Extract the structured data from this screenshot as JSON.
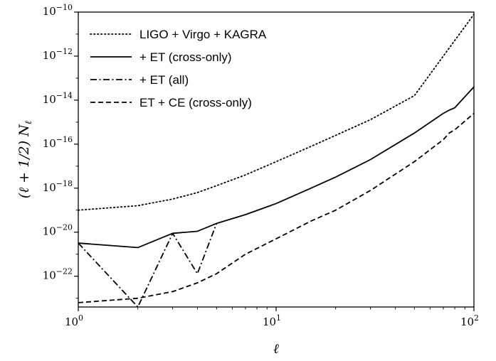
{
  "chart_data": {
    "type": "line",
    "xlabel": "ℓ",
    "ylabel": "(ℓ + 1/2) N",
    "ylabel_sub": "ℓ",
    "xscale": "log",
    "yscale": "log",
    "xlim": [
      1,
      100
    ],
    "ylim": [
      4e-24,
      1e-10
    ],
    "x_ticks": [
      {
        "value": 1,
        "base": "10",
        "exp": "0"
      },
      {
        "value": 10,
        "base": "10",
        "exp": "1"
      },
      {
        "value": 100,
        "base": "10",
        "exp": "2"
      }
    ],
    "y_ticks": [
      {
        "value": 1e-22,
        "base": "10",
        "exp": "−22"
      },
      {
        "value": 1e-20,
        "base": "10",
        "exp": "−20"
      },
      {
        "value": 1e-18,
        "base": "10",
        "exp": "−18"
      },
      {
        "value": 1e-16,
        "base": "10",
        "exp": "−16"
      },
      {
        "value": 1e-14,
        "base": "10",
        "exp": "−14"
      },
      {
        "value": 1e-12,
        "base": "10",
        "exp": "−12"
      },
      {
        "value": 1e-10,
        "base": "10",
        "exp": "−10"
      }
    ],
    "grid": false,
    "legend_position": "top-left",
    "series": [
      {
        "name": "LIGO + Virgo + KAGRA",
        "style": "dotted",
        "color": "#000000",
        "x": [
          1,
          2,
          3,
          4,
          5,
          7,
          10,
          15,
          20,
          30,
          50,
          70,
          100
        ],
        "y": [
          1e-19,
          1.6e-19,
          3.2e-19,
          6.3e-19,
          1.3e-18,
          4e-18,
          1.6e-17,
          7.9e-17,
          2.5e-16,
          1.3e-15,
          1.6e-14,
          1e-12,
          7.9e-11
        ]
      },
      {
        "name": "+ ET (cross-only)",
        "style": "solid",
        "color": "#000000",
        "x": [
          1,
          2,
          3,
          4,
          5,
          7,
          10,
          15,
          20,
          30,
          50,
          70,
          75,
          80,
          100
        ],
        "y": [
          3.2e-21,
          2e-21,
          8.9e-21,
          1.1e-20,
          2.5e-20,
          6.3e-20,
          2e-19,
          1e-18,
          3.2e-18,
          2e-17,
          3.2e-16,
          2.5e-15,
          3.5e-15,
          4.5e-15,
          4e-14
        ]
      },
      {
        "name": "+ ET (all)",
        "style": "dashdot",
        "color": "#000000",
        "x": [
          1,
          2,
          3,
          4,
          5
        ],
        "y": [
          3.2e-21,
          4e-24,
          8.9e-21,
          1.3e-22,
          2.5e-20
        ]
      },
      {
        "name": "ET + CE (cross-only)",
        "style": "dashed",
        "color": "#000000",
        "x": [
          1,
          2,
          3,
          4,
          5,
          7,
          10,
          15,
          20,
          30,
          50,
          70,
          75,
          80,
          100
        ],
        "y": [
          6.3e-24,
          1e-23,
          2e-23,
          5e-23,
          1.3e-22,
          1e-21,
          5e-21,
          3.2e-20,
          1e-19,
          7.9e-19,
          1.6e-17,
          1.6e-16,
          3.2e-16,
          4.5e-16,
          2.5e-15
        ]
      }
    ]
  }
}
